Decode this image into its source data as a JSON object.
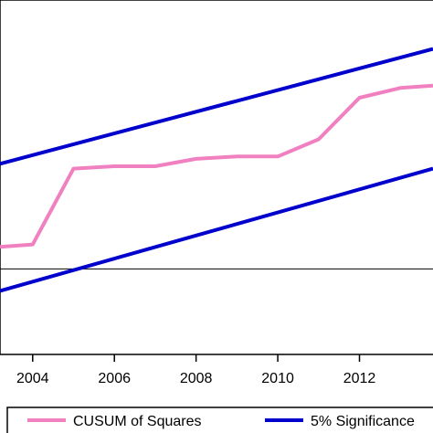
{
  "chart_data": {
    "type": "line",
    "title": "",
    "xlabel": "",
    "ylabel": "",
    "xlim": [
      2003.2,
      2013.8
    ],
    "ylim": [
      -0.35,
      1.1
    ],
    "x_ticks": [
      2004,
      2006,
      2008,
      2010,
      2012
    ],
    "x_tick_labels": [
      "2004",
      "2006",
      "2008",
      "2010",
      "2012"
    ],
    "reference_line": 0,
    "grid": false,
    "legend_position": "bottom",
    "series": [
      {
        "name": "CUSUM of Squares",
        "color": "#f080c0",
        "points": [
          [
            2003.2,
            0.09
          ],
          [
            2004,
            0.1
          ],
          [
            2005,
            0.41
          ],
          [
            2006,
            0.42
          ],
          [
            2007,
            0.42
          ],
          [
            2008,
            0.45
          ],
          [
            2009,
            0.46
          ],
          [
            2010,
            0.46
          ],
          [
            2011,
            0.53
          ],
          [
            2012,
            0.7
          ],
          [
            2013,
            0.74
          ],
          [
            2013.8,
            0.75
          ]
        ]
      },
      {
        "name": "5% Significance",
        "color": "#0000cc",
        "points": [
          [
            2003.2,
            0.43
          ],
          [
            2013.8,
            0.9
          ]
        ]
      },
      {
        "name": "",
        "color": "#0000cc",
        "points": [
          [
            2003.2,
            -0.09
          ],
          [
            2013.8,
            0.41
          ]
        ]
      }
    ],
    "legend": [
      {
        "label": "CUSUM of Squares",
        "color": "#f080c0"
      },
      {
        "label": "5% Significance",
        "color": "#0000cc"
      }
    ]
  }
}
